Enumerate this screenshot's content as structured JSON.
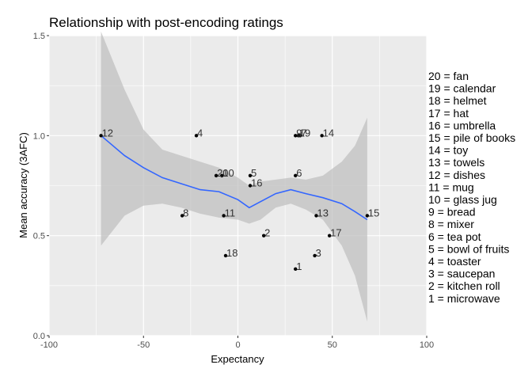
{
  "chart_data": {
    "type": "scatter",
    "title": "Relationship with post-encoding ratings",
    "xlabel": "Expectancy",
    "ylabel": "Mean accuracy (3AFC)",
    "xlim": [
      -100,
      100
    ],
    "ylim": [
      0,
      1.5
    ],
    "xticks": [
      -100,
      -50,
      0,
      50,
      100
    ],
    "yticks": [
      0.0,
      0.5,
      1.0,
      1.5
    ],
    "xtick_labels": [
      "-100",
      "-50",
      "0",
      "50",
      "100"
    ],
    "ytick_labels": [
      "0.0",
      "0.5",
      "1.0",
      "1.5"
    ],
    "grid": true,
    "legend_position": "right",
    "colors": {
      "panel": "#ebebeb",
      "grid": "#ffffff",
      "points": "#000000",
      "smooth": "#3366ff",
      "band": "#bdbdbd"
    },
    "points": [
      {
        "label": "1",
        "x": 30.5,
        "y": 0.333
      },
      {
        "label": "2",
        "x": 13.7,
        "y": 0.5
      },
      {
        "label": "3",
        "x": 40.7,
        "y": 0.4
      },
      {
        "label": "4",
        "x": -22,
        "y": 1.0
      },
      {
        "label": "5",
        "x": 6.5,
        "y": 0.8
      },
      {
        "label": "6",
        "x": 30.5,
        "y": 0.8
      },
      {
        "label": "8",
        "x": -29.5,
        "y": 0.6
      },
      {
        "label": "9",
        "x": 30.5,
        "y": 1.0
      },
      {
        "label": "10",
        "x": -8.5,
        "y": 0.8
      },
      {
        "label": "11",
        "x": -7.5,
        "y": 0.6
      },
      {
        "label": "12",
        "x": -72.5,
        "y": 1.0
      },
      {
        "label": "13",
        "x": 41.5,
        "y": 0.6
      },
      {
        "label": "14",
        "x": 44.5,
        "y": 1.0
      },
      {
        "label": "15",
        "x": 68.5,
        "y": 0.6
      },
      {
        "label": "16",
        "x": 6.5,
        "y": 0.75
      },
      {
        "label": "17",
        "x": 48.5,
        "y": 0.5
      },
      {
        "label": "18",
        "x": -6.5,
        "y": 0.4
      },
      {
        "label": "19",
        "x": 32,
        "y": 1.0
      },
      {
        "label": "20",
        "x": -11.5,
        "y": 0.8
      },
      {
        "label": "7",
        "x": 33,
        "y": 1.0
      }
    ],
    "smooth": [
      {
        "x": -72.5,
        "y": 1.0,
        "lo": 0.45,
        "hi": 1.52
      },
      {
        "x": -60,
        "y": 0.9,
        "lo": 0.6,
        "hi": 1.23
      },
      {
        "x": -50,
        "y": 0.84,
        "lo": 0.65,
        "hi": 1.03
      },
      {
        "x": -40,
        "y": 0.79,
        "lo": 0.66,
        "hi": 0.93
      },
      {
        "x": -30,
        "y": 0.76,
        "lo": 0.64,
        "hi": 0.9
      },
      {
        "x": -20,
        "y": 0.73,
        "lo": 0.61,
        "hi": 0.87
      },
      {
        "x": -10,
        "y": 0.72,
        "lo": 0.59,
        "hi": 0.84
      },
      {
        "x": 0,
        "y": 0.68,
        "lo": 0.58,
        "hi": 0.79
      },
      {
        "x": 6,
        "y": 0.64,
        "lo": 0.56,
        "hi": 0.75
      },
      {
        "x": 12,
        "y": 0.67,
        "lo": 0.58,
        "hi": 0.77
      },
      {
        "x": 20,
        "y": 0.71,
        "lo": 0.64,
        "hi": 0.78
      },
      {
        "x": 28,
        "y": 0.73,
        "lo": 0.66,
        "hi": 0.79
      },
      {
        "x": 36,
        "y": 0.71,
        "lo": 0.63,
        "hi": 0.78
      },
      {
        "x": 45,
        "y": 0.69,
        "lo": 0.58,
        "hi": 0.8
      },
      {
        "x": 55,
        "y": 0.66,
        "lo": 0.45,
        "hi": 0.87
      },
      {
        "x": 62,
        "y": 0.62,
        "lo": 0.3,
        "hi": 0.95
      },
      {
        "x": 68.5,
        "y": 0.58,
        "lo": 0.07,
        "hi": 1.09
      }
    ],
    "legend_lines": [
      "20 = fan",
      "19 = calendar",
      "18 = helmet",
      "17 = hat",
      "16 = umbrella",
      "15 = pile of books",
      "14 = toy",
      "13 = towels",
      "12 = dishes",
      "11 = mug",
      "10 = glass jug",
      "9 = bread",
      "8 = mixer",
      "6 = tea pot",
      "5 = bowl of fruits",
      "4 = toaster",
      "3 = saucepan",
      "2 = kitchen roll",
      "1 = microwave"
    ]
  }
}
